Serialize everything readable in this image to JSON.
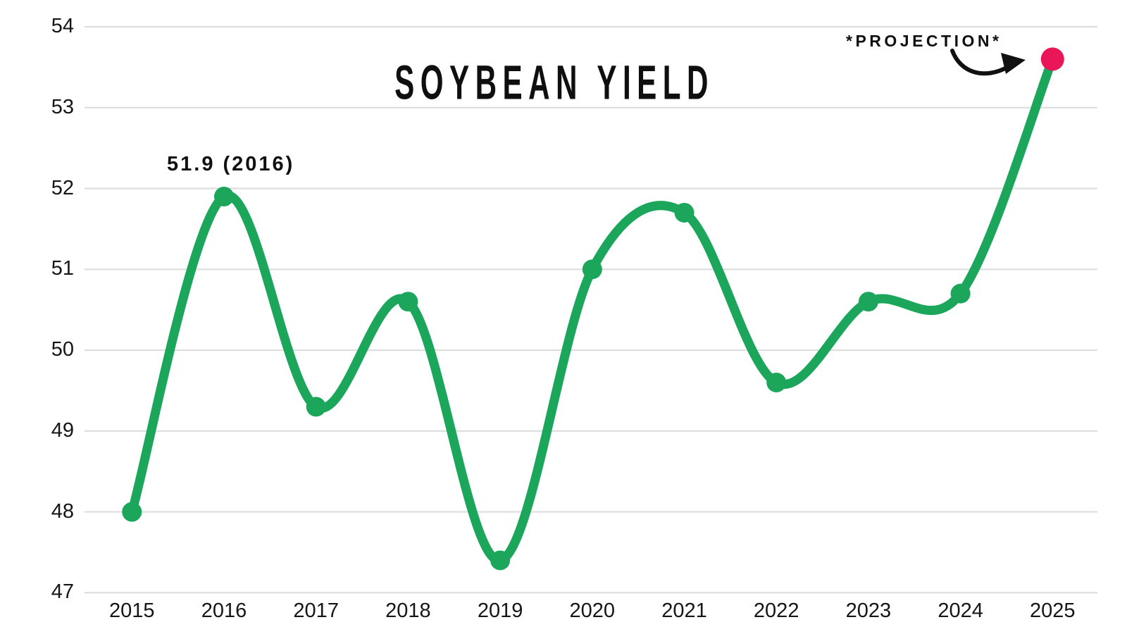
{
  "title": "SOYBEAN YIELD",
  "annotations": {
    "peak_label": "51.9 (2016)",
    "projection_label": "*PROJECTION*"
  },
  "colors": {
    "line": "#1CA65B",
    "point": "#1CA65B",
    "projection_point": "#E91757",
    "gridline": "#DBDBDB",
    "text": "#161616",
    "annotation_ink": "#111111"
  },
  "chart_data": {
    "type": "line",
    "title": "SOYBEAN YIELD",
    "categories": [
      "2015",
      "2016",
      "2017",
      "2018",
      "2019",
      "2020",
      "2021",
      "2022",
      "2023",
      "2024",
      "2025"
    ],
    "series": [
      {
        "name": "Soybean Yield",
        "values": [
          48.0,
          51.9,
          49.3,
          50.6,
          47.4,
          51.0,
          51.7,
          49.6,
          50.6,
          50.7,
          53.6
        ]
      }
    ],
    "projection_index": 10,
    "projection_value": 53.6,
    "peak_callout": {
      "text": "51.9 (2016)",
      "year": "2016",
      "value": 51.9
    },
    "ylim": [
      47,
      54
    ],
    "y_ticks": [
      "47",
      "48",
      "49",
      "50",
      "51",
      "52",
      "53",
      "54"
    ],
    "xlabel": "",
    "ylabel": "",
    "grid": "horizontal",
    "legend_position": "none",
    "smoothing": "spline"
  }
}
